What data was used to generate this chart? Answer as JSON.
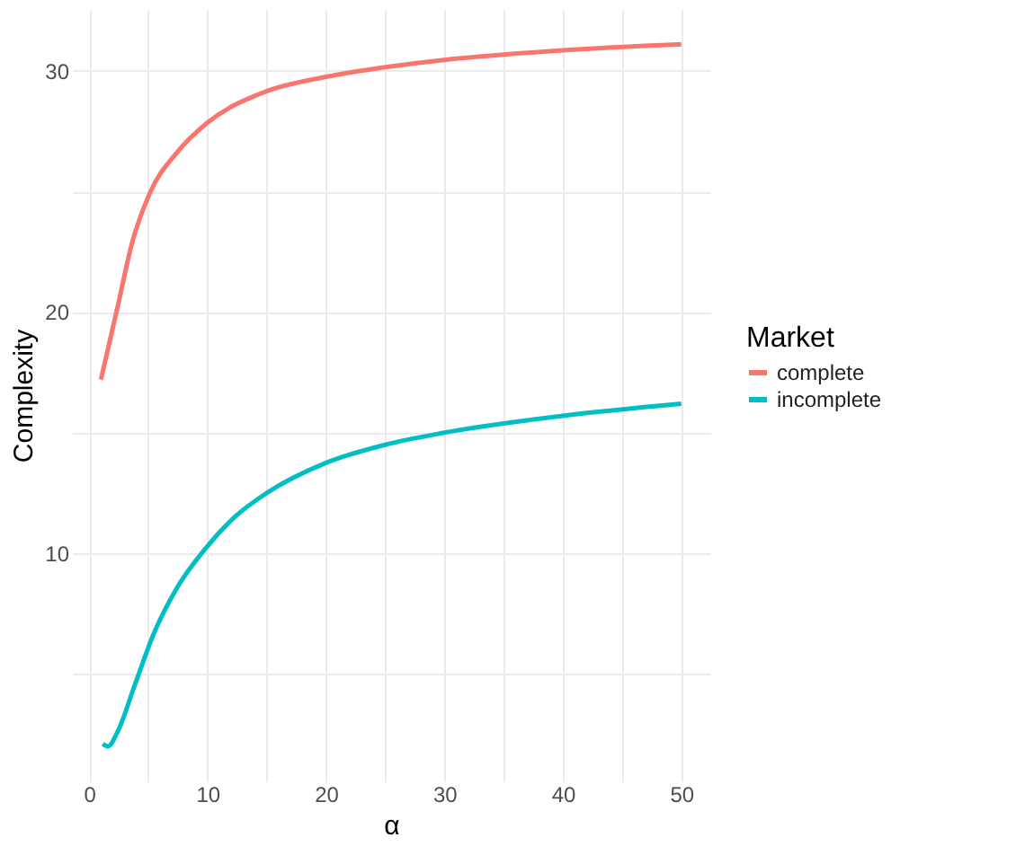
{
  "chart_data": {
    "type": "line",
    "xlabel": "α",
    "ylabel": "Complexity",
    "legend_title": "Market",
    "legend": "right",
    "grid": true,
    "line_style": "solid",
    "marker": "none",
    "xlim": [
      -1.45,
      52.45
    ],
    "ylim": [
      0.55,
      32.56
    ],
    "xticks": [
      0,
      {
        "value": 5,
        "label": null
      },
      10,
      {
        "value": 15,
        "label": null
      },
      20,
      {
        "value": 25,
        "label": null
      },
      30,
      {
        "value": 35,
        "label": null
      },
      40,
      {
        "value": 45,
        "label": null
      },
      50
    ],
    "yticks": [
      {
        "value": 5,
        "label": null
      },
      10,
      {
        "value": 15,
        "label": null
      },
      20,
      {
        "value": 25,
        "label": null
      },
      30
    ],
    "series": [
      {
        "name": "complete",
        "color": "#f8766d",
        "x": [
          1,
          2.4,
          3.65,
          5.1,
          7.4,
          10,
          14.7,
          20,
          25,
          30,
          40,
          50
        ],
        "values": [
          17.2,
          20.2,
          22.9,
          24.9,
          26.6,
          27.85,
          29.1,
          29.75,
          30.15,
          30.45,
          30.85,
          31.1
        ]
      },
      {
        "name": "incomplete",
        "color": "#00bfc4",
        "x": [
          1.15,
          1.6,
          2.4,
          3.9,
          5.4,
          7.4,
          10,
          12.4,
          15,
          20,
          25,
          30,
          40,
          50
        ],
        "values": [
          2.1,
          2.0,
          2.6,
          4.6,
          6.6,
          8.55,
          10.3,
          11.55,
          12.5,
          13.75,
          14.5,
          15.0,
          15.7,
          16.2
        ]
      }
    ]
  }
}
